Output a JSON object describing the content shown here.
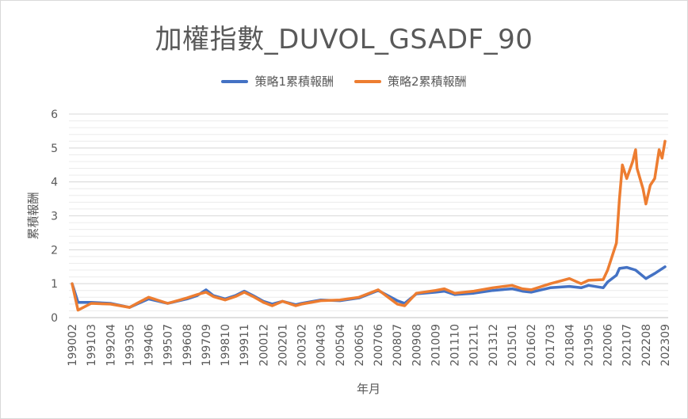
{
  "chart_data": {
    "type": "line",
    "title": "加權指數_DUVOL_GSADF_90",
    "xlabel": "年月",
    "ylabel": "累積報酬",
    "ylim": [
      0,
      6
    ],
    "yticks": [
      0,
      1,
      2,
      3,
      4,
      5,
      6
    ],
    "x_tick_labels": [
      "199002",
      "199103",
      "199204",
      "199305",
      "199406",
      "199507",
      "199608",
      "199709",
      "199810",
      "199911",
      "200012",
      "200201",
      "200302",
      "200403",
      "200504",
      "200605",
      "200706",
      "200807",
      "200908",
      "201009",
      "201110",
      "201211",
      "201312",
      "201501",
      "201602",
      "201703",
      "201804",
      "201905",
      "202006",
      "202107",
      "202208",
      "202309"
    ],
    "grid": true,
    "legend_position": "top",
    "series": [
      {
        "name": "策略1累積報酬",
        "color": "#4472c4",
        "points": [
          [
            "199002",
            1.0
          ],
          [
            "199006",
            0.45
          ],
          [
            "199103",
            0.45
          ],
          [
            "199204",
            0.42
          ],
          [
            "199305",
            0.3
          ],
          [
            "199310",
            0.4
          ],
          [
            "199406",
            0.55
          ],
          [
            "199507",
            0.42
          ],
          [
            "199608",
            0.55
          ],
          [
            "199703",
            0.65
          ],
          [
            "199709",
            0.82
          ],
          [
            "199802",
            0.65
          ],
          [
            "199810",
            0.55
          ],
          [
            "199905",
            0.65
          ],
          [
            "199911",
            0.78
          ],
          [
            "200005",
            0.65
          ],
          [
            "200012",
            0.48
          ],
          [
            "200106",
            0.4
          ],
          [
            "200201",
            0.48
          ],
          [
            "200210",
            0.38
          ],
          [
            "200302",
            0.42
          ],
          [
            "200403",
            0.52
          ],
          [
            "200504",
            0.5
          ],
          [
            "200605",
            0.58
          ],
          [
            "200706",
            0.8
          ],
          [
            "200807",
            0.5
          ],
          [
            "200812",
            0.42
          ],
          [
            "200908",
            0.7
          ],
          [
            "201009",
            0.75
          ],
          [
            "201103",
            0.78
          ],
          [
            "201110",
            0.68
          ],
          [
            "201211",
            0.72
          ],
          [
            "201312",
            0.8
          ],
          [
            "201501",
            0.85
          ],
          [
            "201508",
            0.78
          ],
          [
            "201602",
            0.75
          ],
          [
            "201703",
            0.88
          ],
          [
            "201804",
            0.92
          ],
          [
            "201812",
            0.88
          ],
          [
            "201905",
            0.95
          ],
          [
            "202003",
            0.88
          ],
          [
            "202006",
            1.05
          ],
          [
            "202012",
            1.25
          ],
          [
            "202102",
            1.45
          ],
          [
            "202107",
            1.48
          ],
          [
            "202201",
            1.4
          ],
          [
            "202208",
            1.15
          ],
          [
            "202302",
            1.3
          ],
          [
            "202309",
            1.5
          ]
        ]
      },
      {
        "name": "策略2累積報酬",
        "color": "#ed7d31",
        "points": [
          [
            "199002",
            1.0
          ],
          [
            "199006",
            0.22
          ],
          [
            "199103",
            0.42
          ],
          [
            "199204",
            0.4
          ],
          [
            "199305",
            0.3
          ],
          [
            "199310",
            0.42
          ],
          [
            "199406",
            0.6
          ],
          [
            "199507",
            0.42
          ],
          [
            "199608",
            0.58
          ],
          [
            "199703",
            0.68
          ],
          [
            "199709",
            0.75
          ],
          [
            "199802",
            0.62
          ],
          [
            "199810",
            0.52
          ],
          [
            "199905",
            0.62
          ],
          [
            "199911",
            0.75
          ],
          [
            "200005",
            0.62
          ],
          [
            "200012",
            0.45
          ],
          [
            "200106",
            0.35
          ],
          [
            "200201",
            0.48
          ],
          [
            "200210",
            0.35
          ],
          [
            "200302",
            0.4
          ],
          [
            "200403",
            0.5
          ],
          [
            "200504",
            0.52
          ],
          [
            "200605",
            0.6
          ],
          [
            "200706",
            0.82
          ],
          [
            "200807",
            0.4
          ],
          [
            "200812",
            0.35
          ],
          [
            "200908",
            0.72
          ],
          [
            "201009",
            0.8
          ],
          [
            "201103",
            0.85
          ],
          [
            "201110",
            0.72
          ],
          [
            "201211",
            0.78
          ],
          [
            "201312",
            0.88
          ],
          [
            "201501",
            0.95
          ],
          [
            "201508",
            0.85
          ],
          [
            "201602",
            0.82
          ],
          [
            "201703",
            1.0
          ],
          [
            "201804",
            1.15
          ],
          [
            "201812",
            1.0
          ],
          [
            "201905",
            1.1
          ],
          [
            "202003",
            1.12
          ],
          [
            "202006",
            1.4
          ],
          [
            "202012",
            2.2
          ],
          [
            "202102",
            3.5
          ],
          [
            "202104",
            4.5
          ],
          [
            "202107",
            4.1
          ],
          [
            "202111",
            4.6
          ],
          [
            "202201",
            4.95
          ],
          [
            "202202",
            4.4
          ],
          [
            "202206",
            3.8
          ],
          [
            "202208",
            3.35
          ],
          [
            "202211",
            3.9
          ],
          [
            "202302",
            4.1
          ],
          [
            "202305",
            4.95
          ],
          [
            "202307",
            4.7
          ],
          [
            "202309",
            5.2
          ]
        ]
      }
    ]
  }
}
